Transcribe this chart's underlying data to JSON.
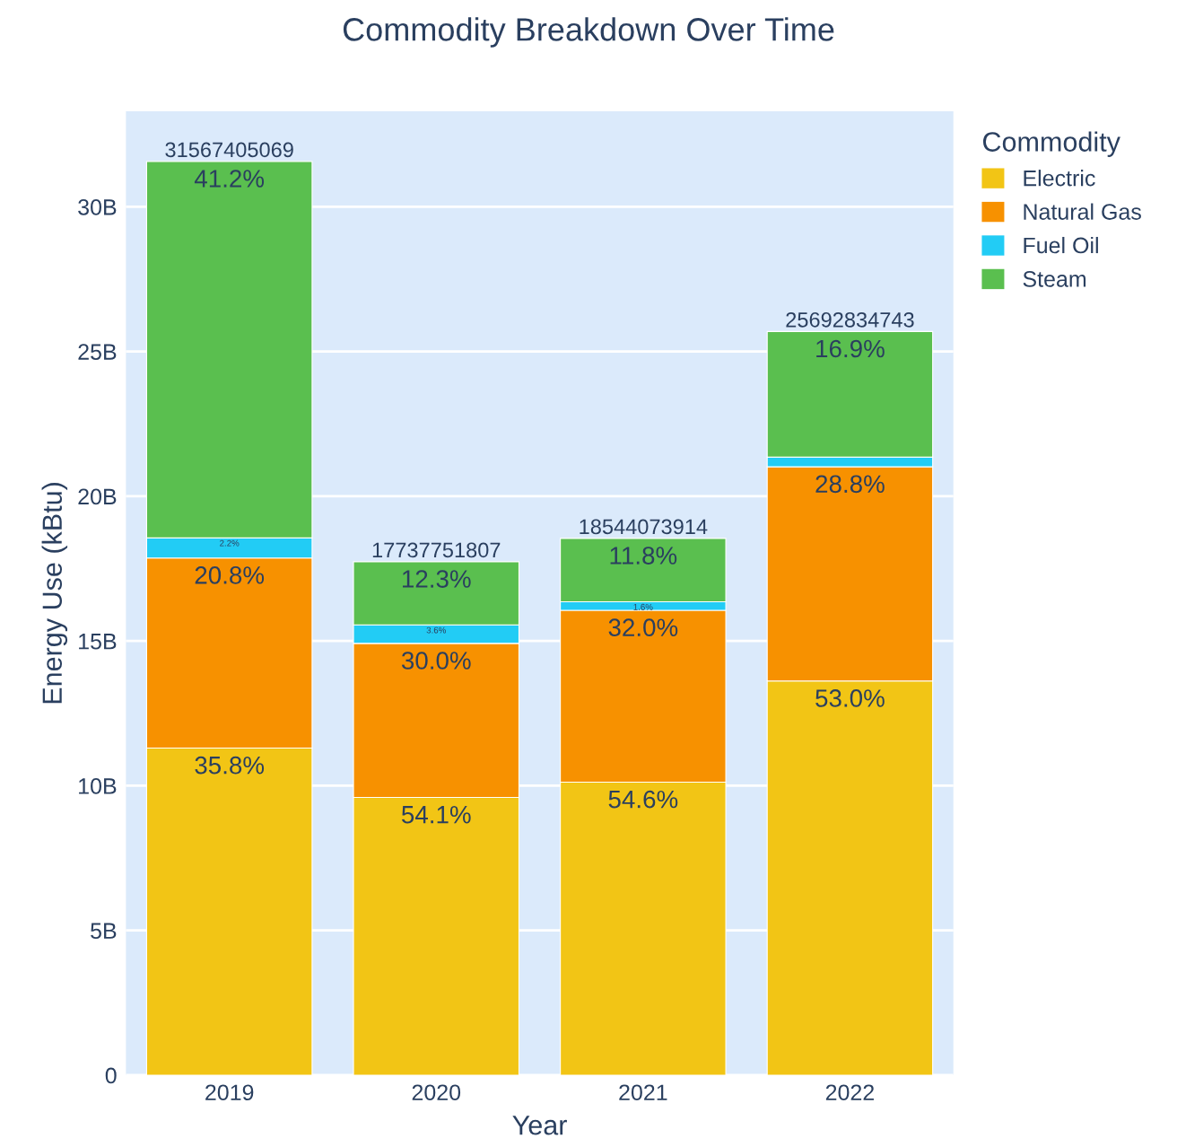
{
  "chart_data": {
    "type": "bar",
    "title": "Commodity Breakdown Over Time",
    "xlabel": "Year",
    "ylabel": "Energy Use (kBtu)",
    "legend_title": "Commodity",
    "categories": [
      "2019",
      "2020",
      "2021",
      "2022"
    ],
    "stacked": true,
    "series": [
      {
        "name": "Electric",
        "color": "#f2c515",
        "values": [
          11301131015,
          9596123728,
          10125064357,
          13617202414
        ]
      },
      {
        "name": "Natural Gas",
        "color": "#f79100",
        "values": [
          6566020254,
          5321325542,
          5934103652,
          7399536406
        ]
      },
      {
        "name": "Fuel Oil",
        "color": "#22ccf5",
        "values": [
          694482912,
          638559065,
          296705183,
          334006851
        ]
      },
      {
        "name": "Steam",
        "color": "#5abf4f",
        "values": [
          13005770888,
          2181743472,
          2188200722,
          4342089072
        ]
      }
    ],
    "totals": [
      "31567405069",
      "17737751807",
      "18544073914",
      "25692834743"
    ],
    "annotations": [
      {
        "text": "35.8%",
        "x": "2019",
        "y": 11301131015
      },
      {
        "text": "54.1%",
        "x": "2020",
        "y": 9596123728
      },
      {
        "text": "54.6%",
        "x": "2021",
        "y": 10125064357
      },
      {
        "text": "53.0%",
        "x": "2022",
        "y": 13617202414
      },
      {
        "text": "20.8%",
        "x": "2019",
        "y": 17867151269
      },
      {
        "text": "30.0%",
        "x": "2020",
        "y": 14917449270
      },
      {
        "text": "32.0%",
        "x": "2021",
        "y": 16059168009
      },
      {
        "text": "28.8%",
        "x": "2022",
        "y": 21016738820
      },
      {
        "text": "2.2%",
        "x": "2019",
        "y": 18561634181
      },
      {
        "text": "3.6%",
        "x": "2020",
        "y": 15556008335
      },
      {
        "text": "1.6%",
        "x": "2021",
        "y": 16355873192
      },
      {
        "text": "41.2%",
        "x": "2019",
        "y": 31567405069
      },
      {
        "text": "12.3%",
        "x": "2020",
        "y": 17737751807
      },
      {
        "text": "11.8%",
        "x": "2021",
        "y": 18544073914
      },
      {
        "text": "16.9%",
        "x": "2022",
        "y": 25692834743
      }
    ],
    "ylim": [
      0,
      33300000000
    ],
    "yticks": [
      0,
      {
        "value": 5000000000,
        "label": "5B"
      },
      {
        "value": 10000000000,
        "label": "10B"
      },
      {
        "value": 15000000000,
        "label": "15B"
      },
      {
        "value": 20000000000,
        "label": "20B"
      },
      {
        "value": 25000000000,
        "label": "25B"
      },
      {
        "value": 30000000000,
        "label": "30B"
      }
    ],
    "grid": "y",
    "legend": "top right"
  }
}
